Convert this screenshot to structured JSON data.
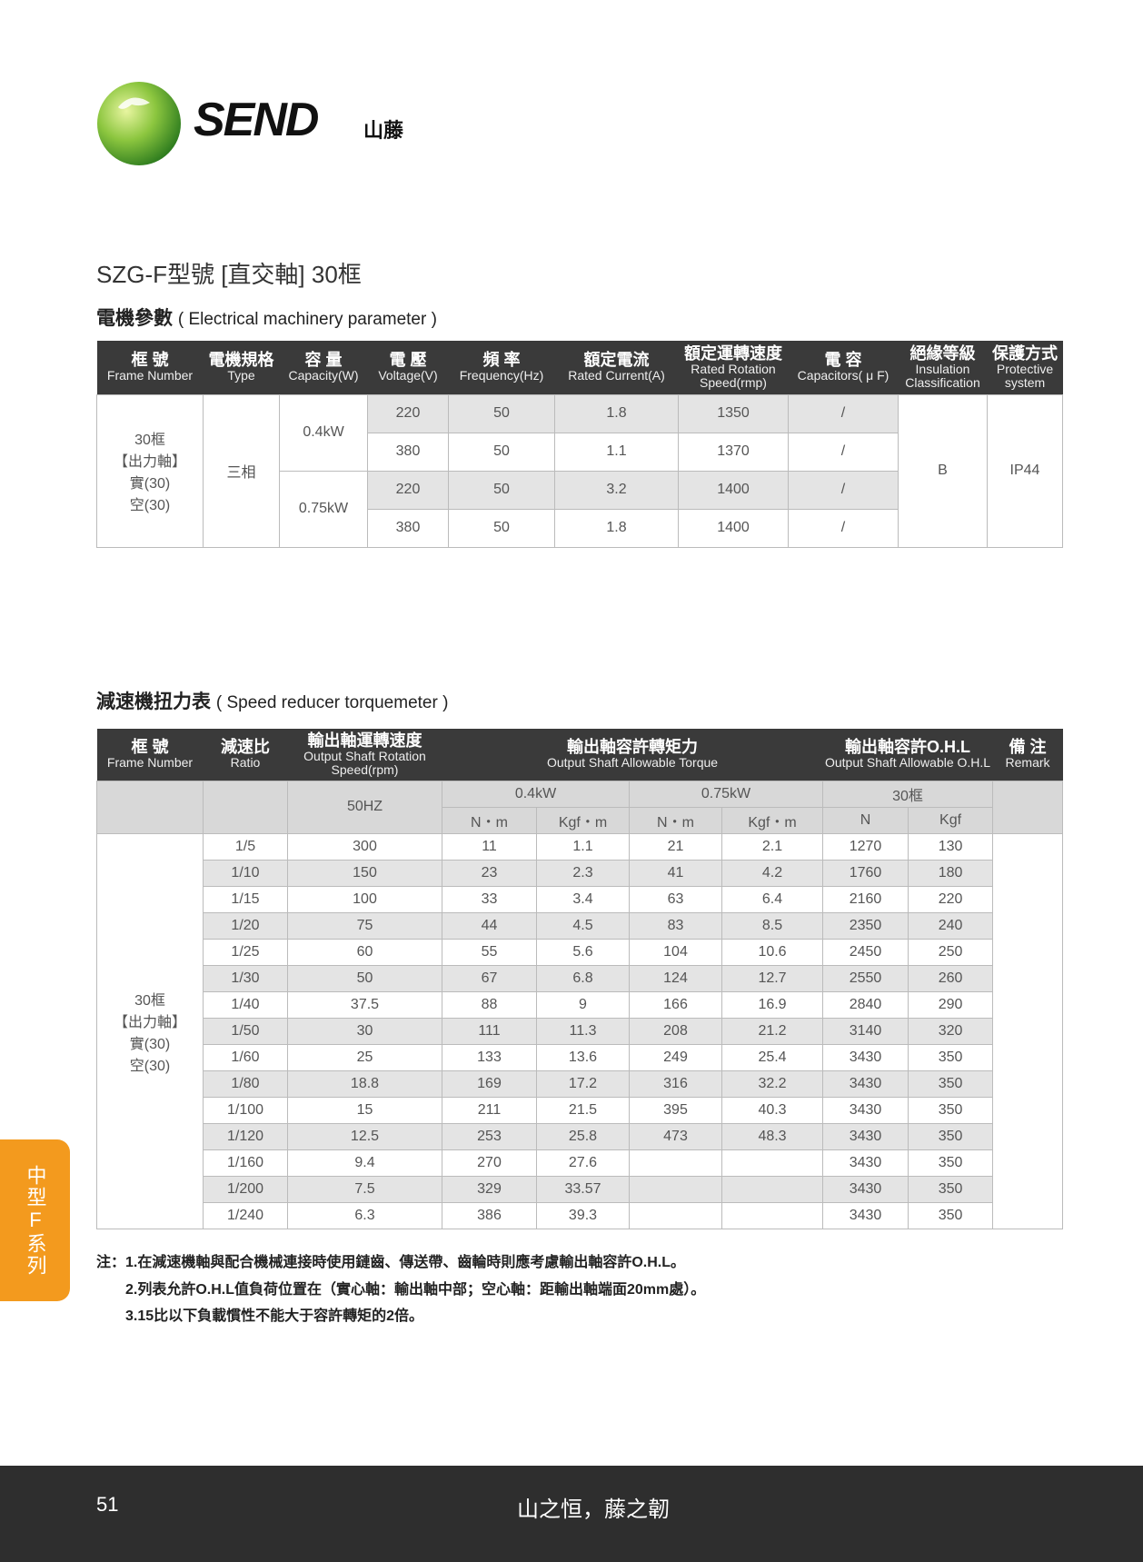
{
  "logo": {
    "brand": "SEND",
    "brand_zh": "山藤"
  },
  "title": "SZG-F型號 [直交軸] 30框",
  "section1": {
    "title": "電機參數",
    "title_en": "( Electrical machinery parameter )"
  },
  "table1": {
    "headers": [
      [
        "框 號",
        "Frame Number"
      ],
      [
        "電機規格",
        "Type"
      ],
      [
        "容 量",
        "Capacity(W)"
      ],
      [
        "電 壓",
        "Voltage(V)"
      ],
      [
        "頻 率",
        "Frequency(Hz)"
      ],
      [
        "額定電流",
        "Rated Current(A)"
      ],
      [
        "額定運轉速度",
        "Rated Rotation Speed(rmp)"
      ],
      [
        "電 容",
        "Capacitors( μ F)"
      ],
      [
        "絕緣等級",
        "Insulation Classification"
      ],
      [
        "保護方式",
        "Protective system"
      ]
    ],
    "frame": [
      "30框",
      "【出力軸】",
      "實(30)",
      "空(30)"
    ],
    "type": "三相",
    "insulation": "B",
    "protection": "IP44",
    "groups": [
      {
        "capacity": "0.4kW",
        "rows": [
          [
            "220",
            "50",
            "1.8",
            "1350",
            "/"
          ],
          [
            "380",
            "50",
            "1.1",
            "1370",
            "/"
          ]
        ]
      },
      {
        "capacity": "0.75kW",
        "rows": [
          [
            "220",
            "50",
            "3.2",
            "1400",
            "/"
          ],
          [
            "380",
            "50",
            "1.8",
            "1400",
            "/"
          ]
        ]
      }
    ]
  },
  "section2": {
    "title": "減速機扭力表",
    "title_en": "( Speed reducer torquemeter )"
  },
  "table2": {
    "headers": [
      [
        "框 號",
        "Frame Number"
      ],
      [
        "減速比",
        "Ratio"
      ],
      [
        "輸出軸運轉速度",
        "Output Shaft Rotation Speed(rpm)"
      ],
      [
        "輸出軸容許轉矩力",
        "Output Shaft Allowable Torque"
      ],
      [
        "輸出軸容許O.H.L",
        "Output Shaft Allowable O.H.L"
      ],
      [
        "備 注",
        "Remark"
      ]
    ],
    "freq": "50HZ",
    "power1": "0.4kW",
    "power2": "0.75kW",
    "ohl_frame": "30框",
    "units": [
      "N・m",
      "Kgf・m",
      "N・m",
      "Kgf・m",
      "N",
      "Kgf"
    ],
    "frame": [
      "30框",
      "【出力軸】",
      "實(30)",
      "空(30)"
    ],
    "rows": [
      [
        "1/5",
        "300",
        "11",
        "1.1",
        "21",
        "2.1",
        "1270",
        "130"
      ],
      [
        "1/10",
        "150",
        "23",
        "2.3",
        "41",
        "4.2",
        "1760",
        "180"
      ],
      [
        "1/15",
        "100",
        "33",
        "3.4",
        "63",
        "6.4",
        "2160",
        "220"
      ],
      [
        "1/20",
        "75",
        "44",
        "4.5",
        "83",
        "8.5",
        "2350",
        "240"
      ],
      [
        "1/25",
        "60",
        "55",
        "5.6",
        "104",
        "10.6",
        "2450",
        "250"
      ],
      [
        "1/30",
        "50",
        "67",
        "6.8",
        "124",
        "12.7",
        "2550",
        "260"
      ],
      [
        "1/40",
        "37.5",
        "88",
        "9",
        "166",
        "16.9",
        "2840",
        "290"
      ],
      [
        "1/50",
        "30",
        "111",
        "11.3",
        "208",
        "21.2",
        "3140",
        "320"
      ],
      [
        "1/60",
        "25",
        "133",
        "13.6",
        "249",
        "25.4",
        "3430",
        "350"
      ],
      [
        "1/80",
        "18.8",
        "169",
        "17.2",
        "316",
        "32.2",
        "3430",
        "350"
      ],
      [
        "1/100",
        "15",
        "211",
        "21.5",
        "395",
        "40.3",
        "3430",
        "350"
      ],
      [
        "1/120",
        "12.5",
        "253",
        "25.8",
        "473",
        "48.3",
        "3430",
        "350"
      ],
      [
        "1/160",
        "9.4",
        "270",
        "27.6",
        "",
        "",
        "3430",
        "350"
      ],
      [
        "1/200",
        "7.5",
        "329",
        "33.57",
        "",
        "",
        "3430",
        "350"
      ],
      [
        "1/240",
        "6.3",
        "386",
        "39.3",
        "",
        "",
        "3430",
        "350"
      ]
    ]
  },
  "notes": [
    "注：1.在減速機軸與配合機械連接時使用鏈齒、傳送帶、齒輪時則應考慮輸出軸容許O.H.L。",
    "2.列表允許O.H.L值負荷位置在（實心軸：輸出軸中部；空心軸：距輸出軸端面20mm處）。",
    "3.15比以下負載慣性不能大于容許轉矩的2倍。"
  ],
  "side_tab": "中型F系列",
  "footer": {
    "page": "51",
    "slogan": "山之恒，藤之韌"
  },
  "colors": {
    "header_bg": "#3a3a3a",
    "row_alt": "#e4e4e4",
    "accent": "#f39a1e",
    "brand_green": "#3f9a2b"
  }
}
